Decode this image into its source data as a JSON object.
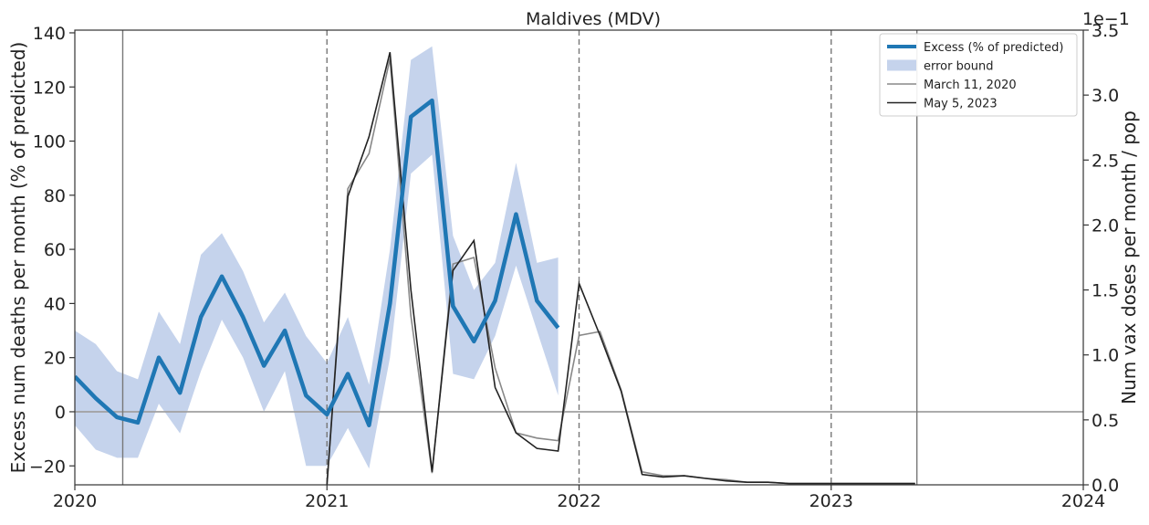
{
  "chart_data": {
    "type": "line",
    "title": "Maldives (MDV)",
    "ylabel": "Excess num deaths per month (% of predicted)",
    "y2label": "Num vax doses per month / pop",
    "y2_scale_label": "1e−1",
    "ylim": [
      -27,
      141
    ],
    "y2lim": [
      0.0,
      3.5
    ],
    "xlim": [
      2020.0,
      2024.0
    ],
    "x_ticks": [
      "2020",
      "2021",
      "2022",
      "2023",
      "2024"
    ],
    "y_ticks": [
      "−20",
      "0",
      "20",
      "40",
      "60",
      "80",
      "100",
      "120",
      "140"
    ],
    "y2_ticks": [
      "0.0",
      "0.5",
      "1.0",
      "1.5",
      "2.0",
      "2.5",
      "3.0",
      "3.5"
    ],
    "legend_position": "top-right",
    "vertical_lines": [
      {
        "x": 2020.19,
        "style": "solid"
      },
      {
        "x": 2021.0,
        "style": "dashed"
      },
      {
        "x": 2022.0,
        "style": "dashed"
      },
      {
        "x": 2023.0,
        "style": "dashed"
      },
      {
        "x": 2023.34,
        "style": "solid"
      }
    ],
    "series": [
      {
        "name": "Excess (% of predicted)",
        "axis": "left",
        "color": "#1f77b4",
        "x": [
          2020.0,
          2020.083,
          2020.167,
          2020.25,
          2020.333,
          2020.417,
          2020.5,
          2020.583,
          2020.667,
          2020.75,
          2020.833,
          2020.917,
          2021.0,
          2021.083,
          2021.167,
          2021.25,
          2021.333,
          2021.417,
          2021.5,
          2021.583,
          2021.667,
          2021.75,
          2021.833,
          2021.917
        ],
        "y": [
          13,
          5,
          -2,
          -4,
          20,
          7,
          35,
          50,
          35,
          17,
          30,
          6,
          -1,
          14,
          -5,
          40,
          109,
          115,
          39,
          26,
          41,
          73,
          41,
          31
        ]
      },
      {
        "name": "error bound",
        "axis": "left",
        "color": "#c5d3ec",
        "x": [
          2020.0,
          2020.083,
          2020.167,
          2020.25,
          2020.333,
          2020.417,
          2020.5,
          2020.583,
          2020.667,
          2020.75,
          2020.833,
          2020.917,
          2021.0,
          2021.083,
          2021.167,
          2021.25,
          2021.333,
          2021.417,
          2021.5,
          2021.583,
          2021.667,
          2021.75,
          2021.833,
          2021.917
        ],
        "upper": [
          30,
          25,
          15,
          12,
          37,
          25,
          58,
          66,
          52,
          33,
          44,
          28,
          18,
          35,
          10,
          60,
          130,
          135,
          65,
          45,
          55,
          92,
          55,
          57
        ],
        "lower": [
          -5,
          -14,
          -17,
          -17,
          3,
          -8,
          15,
          34,
          20,
          0,
          15,
          -20,
          -20,
          -6,
          -21,
          20,
          88,
          95,
          14,
          12,
          28,
          54,
          30,
          6
        ]
      },
      {
        "name": "March 11, 2020",
        "axis": "right",
        "color": "#888888",
        "x": [
          2021.0,
          2021.083,
          2021.167,
          2021.25,
          2021.333,
          2021.417,
          2021.5,
          2021.583,
          2021.667,
          2021.75,
          2021.833,
          2021.917,
          2022.0,
          2022.083,
          2022.167,
          2022.25,
          2022.333,
          2022.417,
          2022.5,
          2022.583,
          2022.667,
          2022.75,
          2022.833,
          2022.917,
          2023.0,
          2023.083,
          2023.167,
          2023.25,
          2023.333
        ],
        "y": [
          0.0,
          2.28,
          2.55,
          3.28,
          1.3,
          0.09,
          1.7,
          1.75,
          0.9,
          0.4,
          0.36,
          0.34,
          1.15,
          1.18,
          0.73,
          0.1,
          0.07,
          0.07,
          0.05,
          0.04,
          0.02,
          0.02,
          0.01,
          0.01,
          0.01,
          0.01,
          0.01,
          0.01,
          0.01
        ]
      },
      {
        "name": "May 5, 2023",
        "axis": "right",
        "color": "#222222",
        "x": [
          2021.0,
          2021.083,
          2021.167,
          2021.25,
          2021.333,
          2021.417,
          2021.5,
          2021.583,
          2021.667,
          2021.75,
          2021.833,
          2021.917,
          2022.0,
          2022.083,
          2022.167,
          2022.25,
          2022.333,
          2022.417,
          2022.5,
          2022.583,
          2022.667,
          2022.75,
          2022.833,
          2022.917,
          2023.0,
          2023.083,
          2023.167,
          2023.25,
          2023.333
        ],
        "y": [
          0.0,
          2.22,
          2.68,
          3.33,
          1.5,
          0.1,
          1.65,
          1.88,
          0.75,
          0.4,
          0.28,
          0.26,
          1.55,
          1.15,
          0.72,
          0.08,
          0.06,
          0.07,
          0.05,
          0.03,
          0.02,
          0.02,
          0.01,
          0.01,
          0.01,
          0.01,
          0.01,
          0.01,
          0.01
        ]
      }
    ]
  }
}
